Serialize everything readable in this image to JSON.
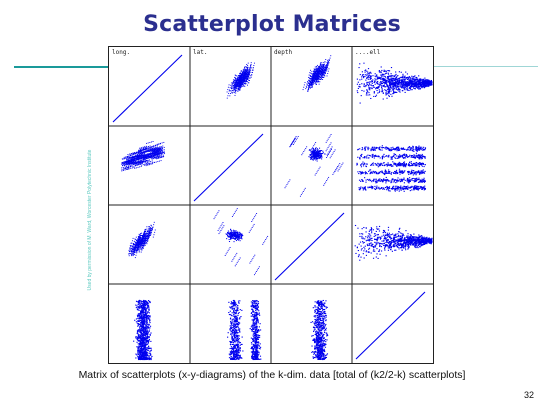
{
  "slide": {
    "title": "Scatterplot Matrices",
    "side_credit": "Used by permission of M. Ward, Worcester Polytechnic Institute",
    "caption": "Matrix of scatterplots (x-y-diagrams) of the k-dim. data [total of (k2/2-k) scatterplots]",
    "page_number": "32"
  },
  "colors": {
    "title": "#2b2f8f",
    "accent_rule": "#1a9a9a",
    "point": "#0000ee",
    "grid": "#222222"
  },
  "chart_data": {
    "type": "scatter",
    "layout": "scatterplot-matrix",
    "rows": 4,
    "cols": 4,
    "variable_labels": [
      "long.",
      "lat.",
      "depth",
      "....ell"
    ],
    "diagonal": "identity-line",
    "point_color": "#0000ee"
  }
}
